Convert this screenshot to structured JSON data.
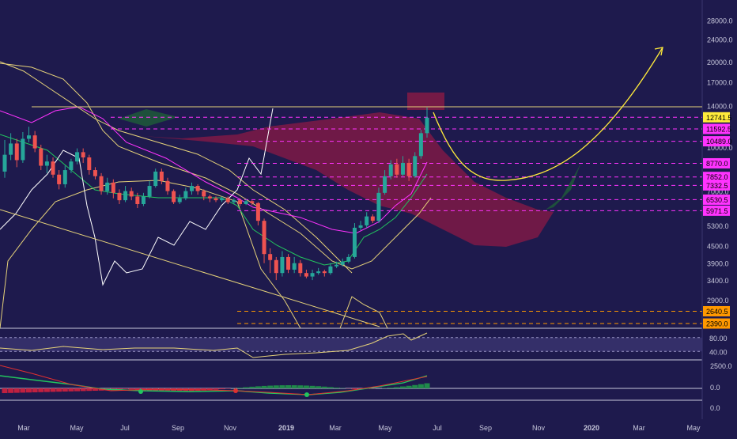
{
  "theme": {
    "background": "#1e1a4d",
    "axis_text": "#c8c8dc",
    "grid": "#2a2660",
    "candle_up": "#26a69a",
    "candle_down": "#ef5350",
    "bollinger": "#e6d27a",
    "conversion_line": "#ff33ff",
    "lagging_span": "#ffffff",
    "base_line": "#22c55e",
    "cloud_bear": "#8b1a45",
    "cloud_bull": "#1f5a3a",
    "projection": "#ffeb3b",
    "level_line": "#ff33ff"
  },
  "price_axis": {
    "ticks": [
      "28000.0",
      "24000.0",
      "20000.0",
      "17000.0",
      "14000.0",
      "10000.0",
      "7000.0",
      "5300.0",
      "4500.0",
      "3900.0",
      "3400.0",
      "2900.0"
    ],
    "tick_values": [
      28000,
      24000,
      20000,
      17000,
      14000,
      10000,
      7000,
      5300,
      4500,
      3900,
      3400,
      2900
    ]
  },
  "price_labels": [
    {
      "text": "12741.5",
      "value": 12741.5,
      "bg": "#ffeb3b",
      "fg": "#000000"
    },
    {
      "text": "11592.5",
      "value": 11592.5,
      "bg": "#ff33ff",
      "fg": "#000000"
    },
    {
      "text": "10489.0",
      "value": 10489.0,
      "bg": "#ff33ff",
      "fg": "#000000"
    },
    {
      "text": "8770.0",
      "value": 8770.0,
      "bg": "#ff33ff",
      "fg": "#000000"
    },
    {
      "text": "7852.0",
      "value": 7852.0,
      "bg": "#ff33ff",
      "fg": "#000000"
    },
    {
      "text": "7332.5",
      "value": 7332.5,
      "bg": "#ff33ff",
      "fg": "#000000"
    },
    {
      "text": "6530.5",
      "value": 6530.5,
      "bg": "#ff33ff",
      "fg": "#000000"
    },
    {
      "text": "5971.5",
      "value": 5971.5,
      "bg": "#ff33ff",
      "fg": "#000000"
    },
    {
      "text": "2640.5",
      "value": 2640.5,
      "bg": "#ff9800",
      "fg": "#000000"
    },
    {
      "text": "2390.0",
      "value": 2390.0,
      "bg": "#ff9800",
      "fg": "#000000"
    }
  ],
  "rsi_axis": {
    "ticks": [
      "80.00",
      "40.00"
    ],
    "tick_values": [
      80,
      40
    ]
  },
  "macd_axis": {
    "ticks": [
      "2500.0",
      "0.0",
      "0.0"
    ]
  },
  "time_axis": {
    "labels": [
      "Mar",
      "May",
      "Jul",
      "Sep",
      "Nov",
      "2019",
      "Mar",
      "May",
      "Jul",
      "Sep",
      "Nov",
      "2020",
      "Mar",
      "May"
    ],
    "bold": [
      false,
      false,
      false,
      false,
      false,
      true,
      false,
      false,
      false,
      false,
      false,
      true,
      false,
      false
    ]
  },
  "chart_data": {
    "type": "candlestick",
    "scale": "log",
    "ylim": [
      2300,
      30000
    ],
    "x_start": "2018-02",
    "x_end": "2020-05",
    "candles": [
      [
        8200,
        9400,
        10600,
        7800
      ],
      [
        9400,
        10300,
        11200,
        9000
      ],
      [
        10300,
        9000,
        10700,
        8500
      ],
      [
        9000,
        10700,
        11300,
        8800
      ],
      [
        10700,
        11000,
        11800,
        10400
      ],
      [
        11000,
        9900,
        11400,
        9600
      ],
      [
        9900,
        8600,
        10200,
        8300
      ],
      [
        8600,
        8900,
        9400,
        8100
      ],
      [
        8900,
        8000,
        9200,
        7800
      ],
      [
        8000,
        7400,
        8300,
        7100
      ],
      [
        7400,
        8300,
        8600,
        7200
      ],
      [
        8300,
        8900,
        9100,
        8100
      ],
      [
        8900,
        9600,
        9900,
        8700
      ],
      [
        9600,
        9200,
        9900,
        8800
      ],
      [
        9200,
        8300,
        9400,
        8000
      ],
      [
        8300,
        7900,
        8500,
        7700
      ],
      [
        7900,
        7000,
        8100,
        6800
      ],
      [
        7000,
        7500,
        7800,
        6800
      ],
      [
        7500,
        6900,
        7700,
        6600
      ],
      [
        6900,
        6500,
        7100,
        6300
      ],
      [
        6500,
        7000,
        7300,
        6400
      ],
      [
        7000,
        6700,
        7200,
        6500
      ],
      [
        6700,
        6300,
        6900,
        6100
      ],
      [
        6300,
        6700,
        6900,
        6200
      ],
      [
        6700,
        7300,
        7600,
        6600
      ],
      [
        7300,
        8200,
        8400,
        7200
      ],
      [
        8200,
        7600,
        8400,
        7400
      ],
      [
        7600,
        7000,
        7800,
        6800
      ],
      [
        7000,
        6400,
        7100,
        6300
      ],
      [
        6400,
        6600,
        6800,
        6300
      ],
      [
        6600,
        7000,
        7200,
        6500
      ],
      [
        7000,
        7300,
        7500,
        6800
      ],
      [
        7300,
        7000,
        7400,
        6800
      ],
      [
        7000,
        6700,
        7100,
        6500
      ],
      [
        6700,
        6600,
        6800,
        6400
      ],
      [
        6600,
        6500,
        6700,
        6400
      ],
      [
        6500,
        6600,
        6700,
        6400
      ],
      [
        6600,
        6400,
        6700,
        6300
      ],
      [
        6400,
        6500,
        6600,
        6300
      ],
      [
        6500,
        6300,
        6600,
        6200
      ],
      [
        6300,
        6450,
        6550,
        6250
      ],
      [
        6450,
        6350,
        6500,
        6250
      ],
      [
        6350,
        5500,
        6400,
        5300
      ],
      [
        5500,
        4200,
        5600,
        3900
      ],
      [
        4200,
        4000,
        4400,
        3600
      ],
      [
        4000,
        3600,
        4100,
        3400
      ],
      [
        3600,
        4100,
        4300,
        3500
      ],
      [
        4100,
        3700,
        4200,
        3600
      ],
      [
        3700,
        3900,
        4100,
        3600
      ],
      [
        3900,
        3600,
        4000,
        3500
      ],
      [
        3600,
        3500,
        3700,
        3450
      ],
      [
        3500,
        3600,
        3700,
        3400
      ],
      [
        3600,
        3650,
        3750,
        3550
      ],
      [
        3650,
        3600,
        3700,
        3500
      ],
      [
        3600,
        3800,
        3900,
        3550
      ],
      [
        3800,
        3850,
        3950,
        3750
      ],
      [
        3850,
        3950,
        4050,
        3800
      ],
      [
        3950,
        4100,
        4200,
        3900
      ],
      [
        4100,
        5200,
        5400,
        4050
      ],
      [
        5200,
        5300,
        5500,
        5100
      ],
      [
        5300,
        5700,
        5900,
        5200
      ],
      [
        5700,
        5500,
        5800,
        5400
      ],
      [
        5500,
        6900,
        7200,
        5400
      ],
      [
        6900,
        7900,
        8300,
        6800
      ],
      [
        7900,
        8700,
        9000,
        7700
      ],
      [
        8700,
        8000,
        9100,
        7800
      ],
      [
        8000,
        8800,
        9300,
        7900
      ],
      [
        8800,
        7900,
        9100,
        7600
      ],
      [
        7900,
        9300,
        9600,
        7800
      ],
      [
        9300,
        11200,
        11500,
        9100
      ],
      [
        11200,
        12700,
        13800,
        10800
      ]
    ],
    "levels": [
      12741.5,
      11592.5,
      10489.0,
      8770.0,
      7852.0,
      7332.5,
      6530.5,
      5971.5,
      2640.5,
      2390.0
    ],
    "projection_path": "down from 12741 to about 7400 near Sep, then up toward 20000 by Feb 2020",
    "rsi": {
      "ylim": [
        20,
        100
      ],
      "overbought": 80,
      "oversold": 40
    },
    "macd": {
      "zero": 0,
      "hist_max": 2500
    }
  }
}
